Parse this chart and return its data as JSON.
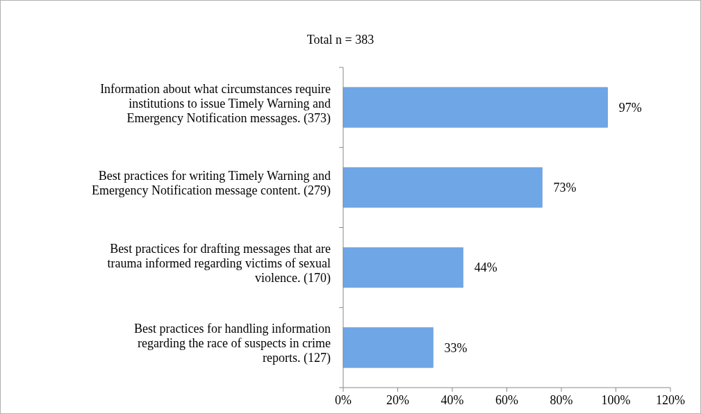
{
  "chart_data": {
    "type": "bar",
    "orientation": "horizontal",
    "title": "Total n = 383",
    "categories": [
      "Information about what circumstances require institutions to issue Timely Warning and Emergency Notification messages. (373)",
      "Best practices for writing Timely Warning and Emergency Notification message content. (279)",
      "Best practices for drafting messages that are trauma informed regarding victims of sexual violence. (170)",
      "Best practices for handling information regarding the race of suspects in crime reports. (127)"
    ],
    "values": [
      97,
      73,
      44,
      33
    ],
    "value_labels": [
      "97%",
      "73%",
      "44%",
      "33%"
    ],
    "color": "#6fa6e6",
    "xlim": [
      0,
      120
    ],
    "xticks": [
      {
        "value": 0,
        "label": "0%"
      },
      {
        "value": 20,
        "label": "20%"
      },
      {
        "value": 40,
        "label": "40%"
      },
      {
        "value": 60,
        "label": "60%"
      },
      {
        "value": 80,
        "label": "80%"
      },
      {
        "value": 100,
        "label": "100%"
      },
      {
        "value": 120,
        "label": "120%"
      }
    ],
    "grid": false
  }
}
